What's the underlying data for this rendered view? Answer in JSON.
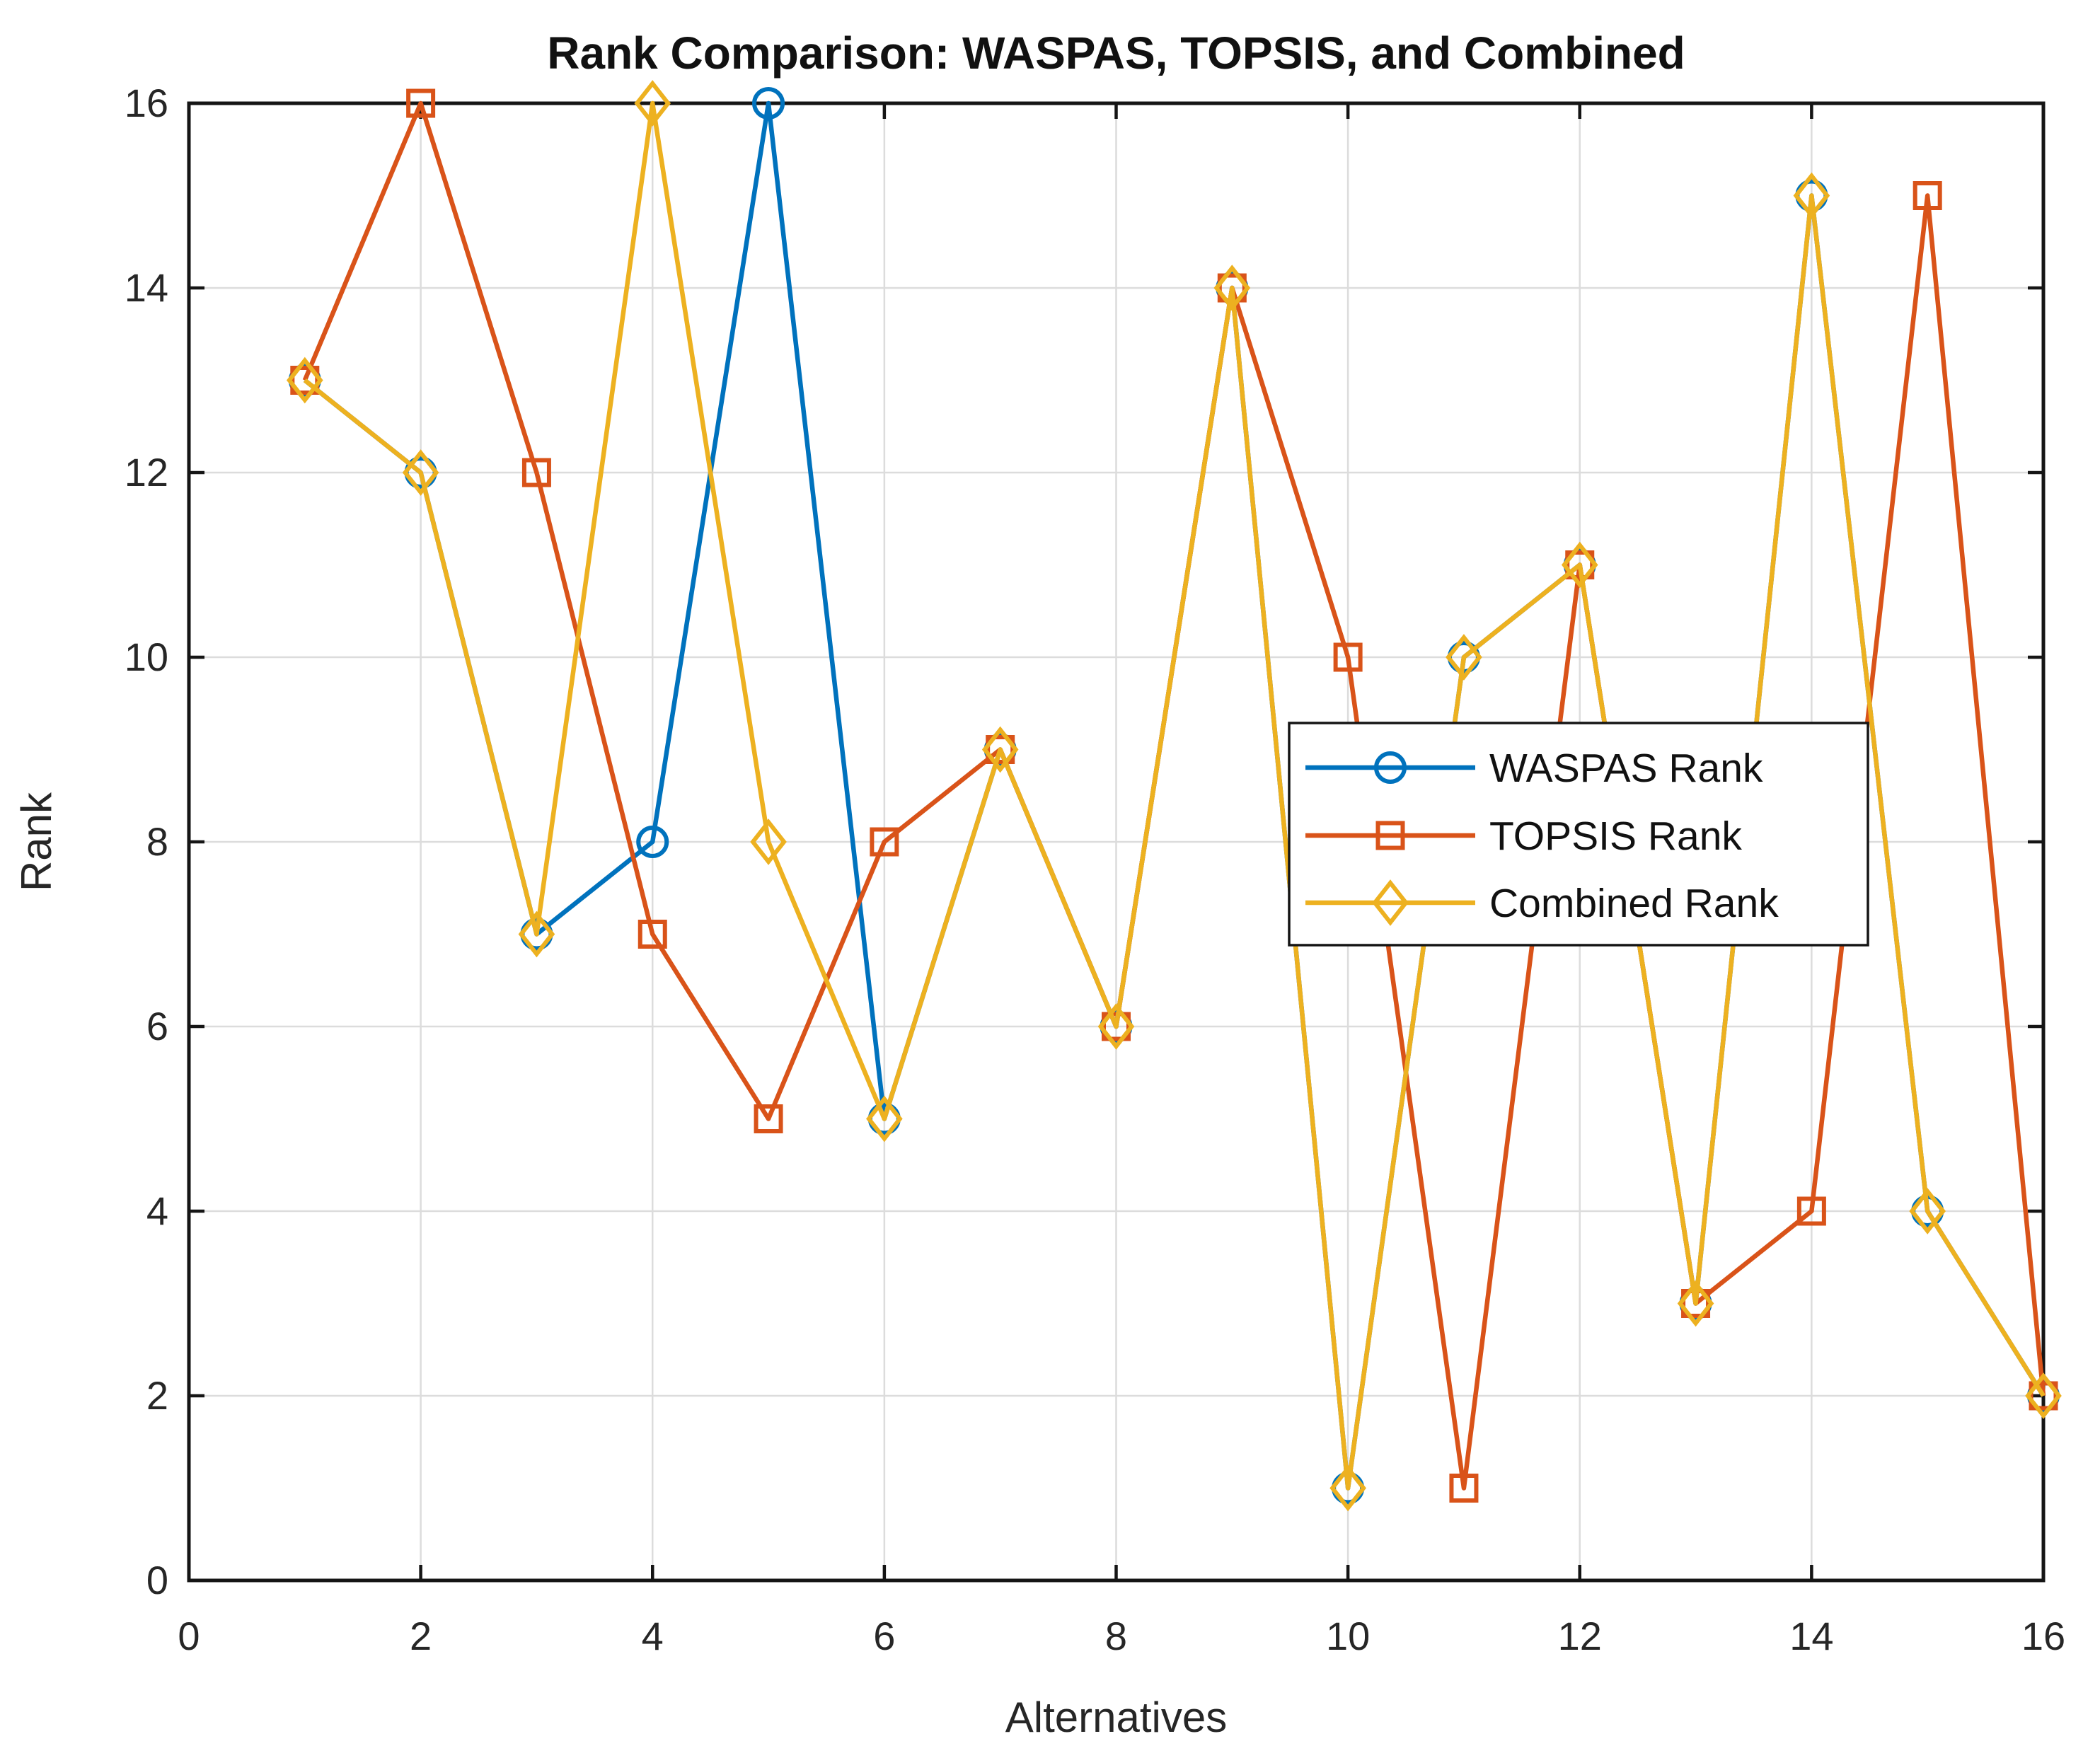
{
  "chart_data": {
    "type": "line",
    "title": "Rank Comparison: WASPAS, TOPSIS, and Combined",
    "xlabel": "Alternatives",
    "ylabel": "Rank",
    "xlim": [
      0,
      16
    ],
    "ylim": [
      0,
      16
    ],
    "xticks": [
      0,
      2,
      4,
      6,
      8,
      10,
      12,
      14,
      16
    ],
    "yticks": [
      0,
      2,
      4,
      6,
      8,
      10,
      12,
      14,
      16
    ],
    "grid": true,
    "legend_position": "inside-middle-right",
    "x": [
      1,
      2,
      3,
      4,
      5,
      6,
      7,
      8,
      9,
      10,
      11,
      12,
      13,
      14,
      15,
      16
    ],
    "series": [
      {
        "name": "WASPAS Rank",
        "color": "#0072BD",
        "marker": "circle",
        "values": [
          13,
          12,
          7,
          8,
          16,
          5,
          9,
          6,
          14,
          1,
          10,
          11,
          3,
          15,
          4,
          2
        ]
      },
      {
        "name": "TOPSIS Rank",
        "color": "#D95319",
        "marker": "square",
        "values": [
          13,
          16,
          12,
          7,
          5,
          8,
          9,
          6,
          14,
          10,
          1,
          11,
          3,
          4,
          15,
          2
        ]
      },
      {
        "name": "Combined Rank",
        "color": "#EDB120",
        "marker": "diamond",
        "values": [
          13,
          12,
          7,
          16,
          8,
          5,
          9,
          6,
          14,
          1,
          10,
          11,
          3,
          15,
          4,
          2
        ]
      }
    ],
    "colors": {
      "background": "#ffffff",
      "grid": "#dcdcdc",
      "frame": "#151515",
      "tick_text": "#262626",
      "title_text": "#111111",
      "legend_border": "#151515",
      "legend_background": "#ffffff"
    }
  }
}
